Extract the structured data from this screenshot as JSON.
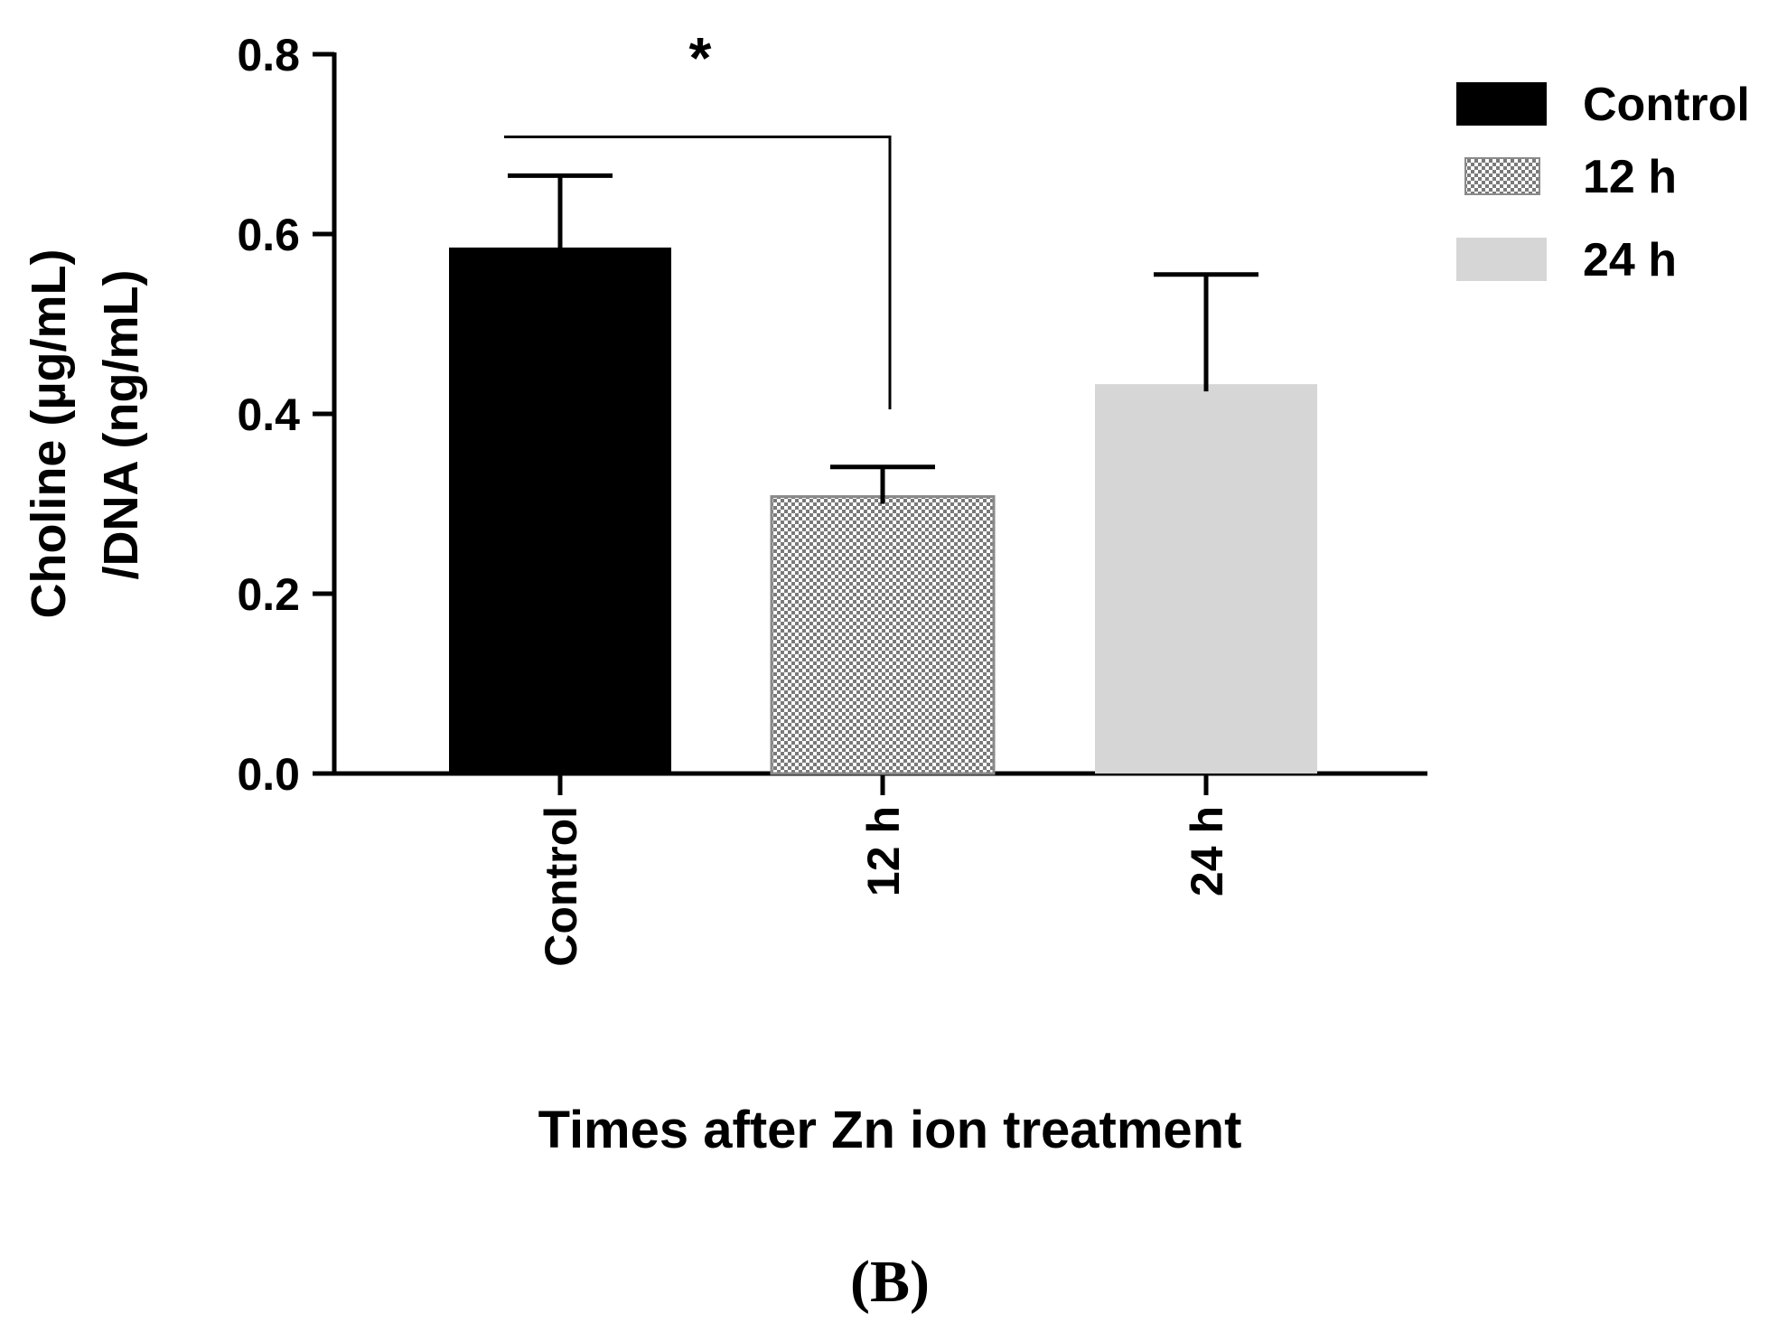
{
  "chart_data": {
    "type": "bar",
    "title": "",
    "panel_label": "(B)",
    "xlabel": "Times after Zn ion treatment",
    "ylabel": [
      "Choline (µg/mL)",
      "/DNA (ng/mL)"
    ],
    "ylim": [
      0,
      0.8
    ],
    "yticks": [
      0.0,
      0.2,
      0.4,
      0.6,
      0.8
    ],
    "ytick_labels": [
      "0.0",
      "0.2",
      "0.4",
      "0.6",
      "0.8"
    ],
    "grid": false,
    "categories": [
      "Control",
      "12 h",
      "24 h"
    ],
    "values": [
      0.585,
      0.308,
      0.433
    ],
    "errors": [
      0.08,
      0.033,
      0.122
    ],
    "bar_styles": [
      {
        "fill": "#000000",
        "pattern": "solid"
      },
      {
        "fill": "#d0d0d0",
        "pattern": "checker"
      },
      {
        "fill": "#d6d6d6",
        "pattern": "solid"
      }
    ],
    "legend": {
      "position": "top-right",
      "entries": [
        "Control",
        "12 h",
        "24 h"
      ]
    },
    "significance": {
      "from": "Control",
      "to": "12 h",
      "marker": "*",
      "bracket_y": 0.708
    }
  }
}
